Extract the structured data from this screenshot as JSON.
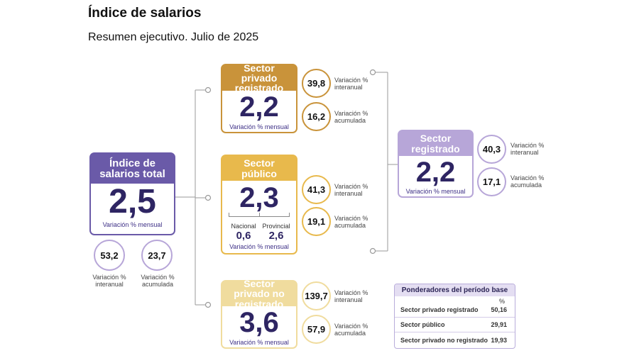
{
  "title": "Índice de salarios",
  "subtitle": "Resumen ejecutivo. Julio de 2025",
  "colors": {
    "total": "#6a5aa8",
    "privado": "#c9933a",
    "publico": "#e8b94c",
    "no_registrado": "#f0dc9e",
    "registrado": "#b7a6d8",
    "big_number": "#2e2563",
    "connector": "#9a9a9a"
  },
  "total": {
    "label": "Índice de salarios total",
    "value": "2,5",
    "caption": "Variación % mensual",
    "interanual": {
      "value": "53,2",
      "label": "Variación % interanual"
    },
    "acumulada": {
      "value": "23,7",
      "label": "Variación % acumulada"
    }
  },
  "privado": {
    "label": "Sector privado registrado",
    "value": "2,2",
    "caption": "Variación % mensual",
    "interanual": {
      "value": "39,8",
      "label": "Variación % interanual"
    },
    "acumulada": {
      "value": "16,2",
      "label": "Variación % acumulada"
    }
  },
  "publico": {
    "label": "Sector público",
    "value": "2,3",
    "caption": "Variación % mensual",
    "nacional": {
      "label": "Nacional",
      "value": "0,6"
    },
    "provincial": {
      "label": "Provincial",
      "value": "2,6"
    },
    "interanual": {
      "value": "41,3",
      "label": "Variación % interanual"
    },
    "acumulada": {
      "value": "19,1",
      "label": "Variación % acumulada"
    }
  },
  "no_registrado": {
    "label": "Sector privado no registrado",
    "value": "3,6",
    "caption": "Variación % mensual",
    "interanual": {
      "value": "139,7",
      "label": "Variación % interanual"
    },
    "acumulada": {
      "value": "57,9",
      "label": "Variación % acumulada"
    }
  },
  "registrado": {
    "label": "Sector registrado",
    "value": "2,2",
    "caption": "Variación % mensual",
    "interanual": {
      "value": "40,3",
      "label": "Variación % interanual"
    },
    "acumulada": {
      "value": "17,1",
      "label": "Variación % acumulada"
    }
  },
  "weights": {
    "title": "Ponderadores del período base",
    "unit": "%",
    "rows": [
      {
        "label": "Sector privado registrado",
        "value": "50,16"
      },
      {
        "label": "Sector público",
        "value": "29,91"
      },
      {
        "label": "Sector privado no registrado",
        "value": "19,93"
      }
    ]
  }
}
